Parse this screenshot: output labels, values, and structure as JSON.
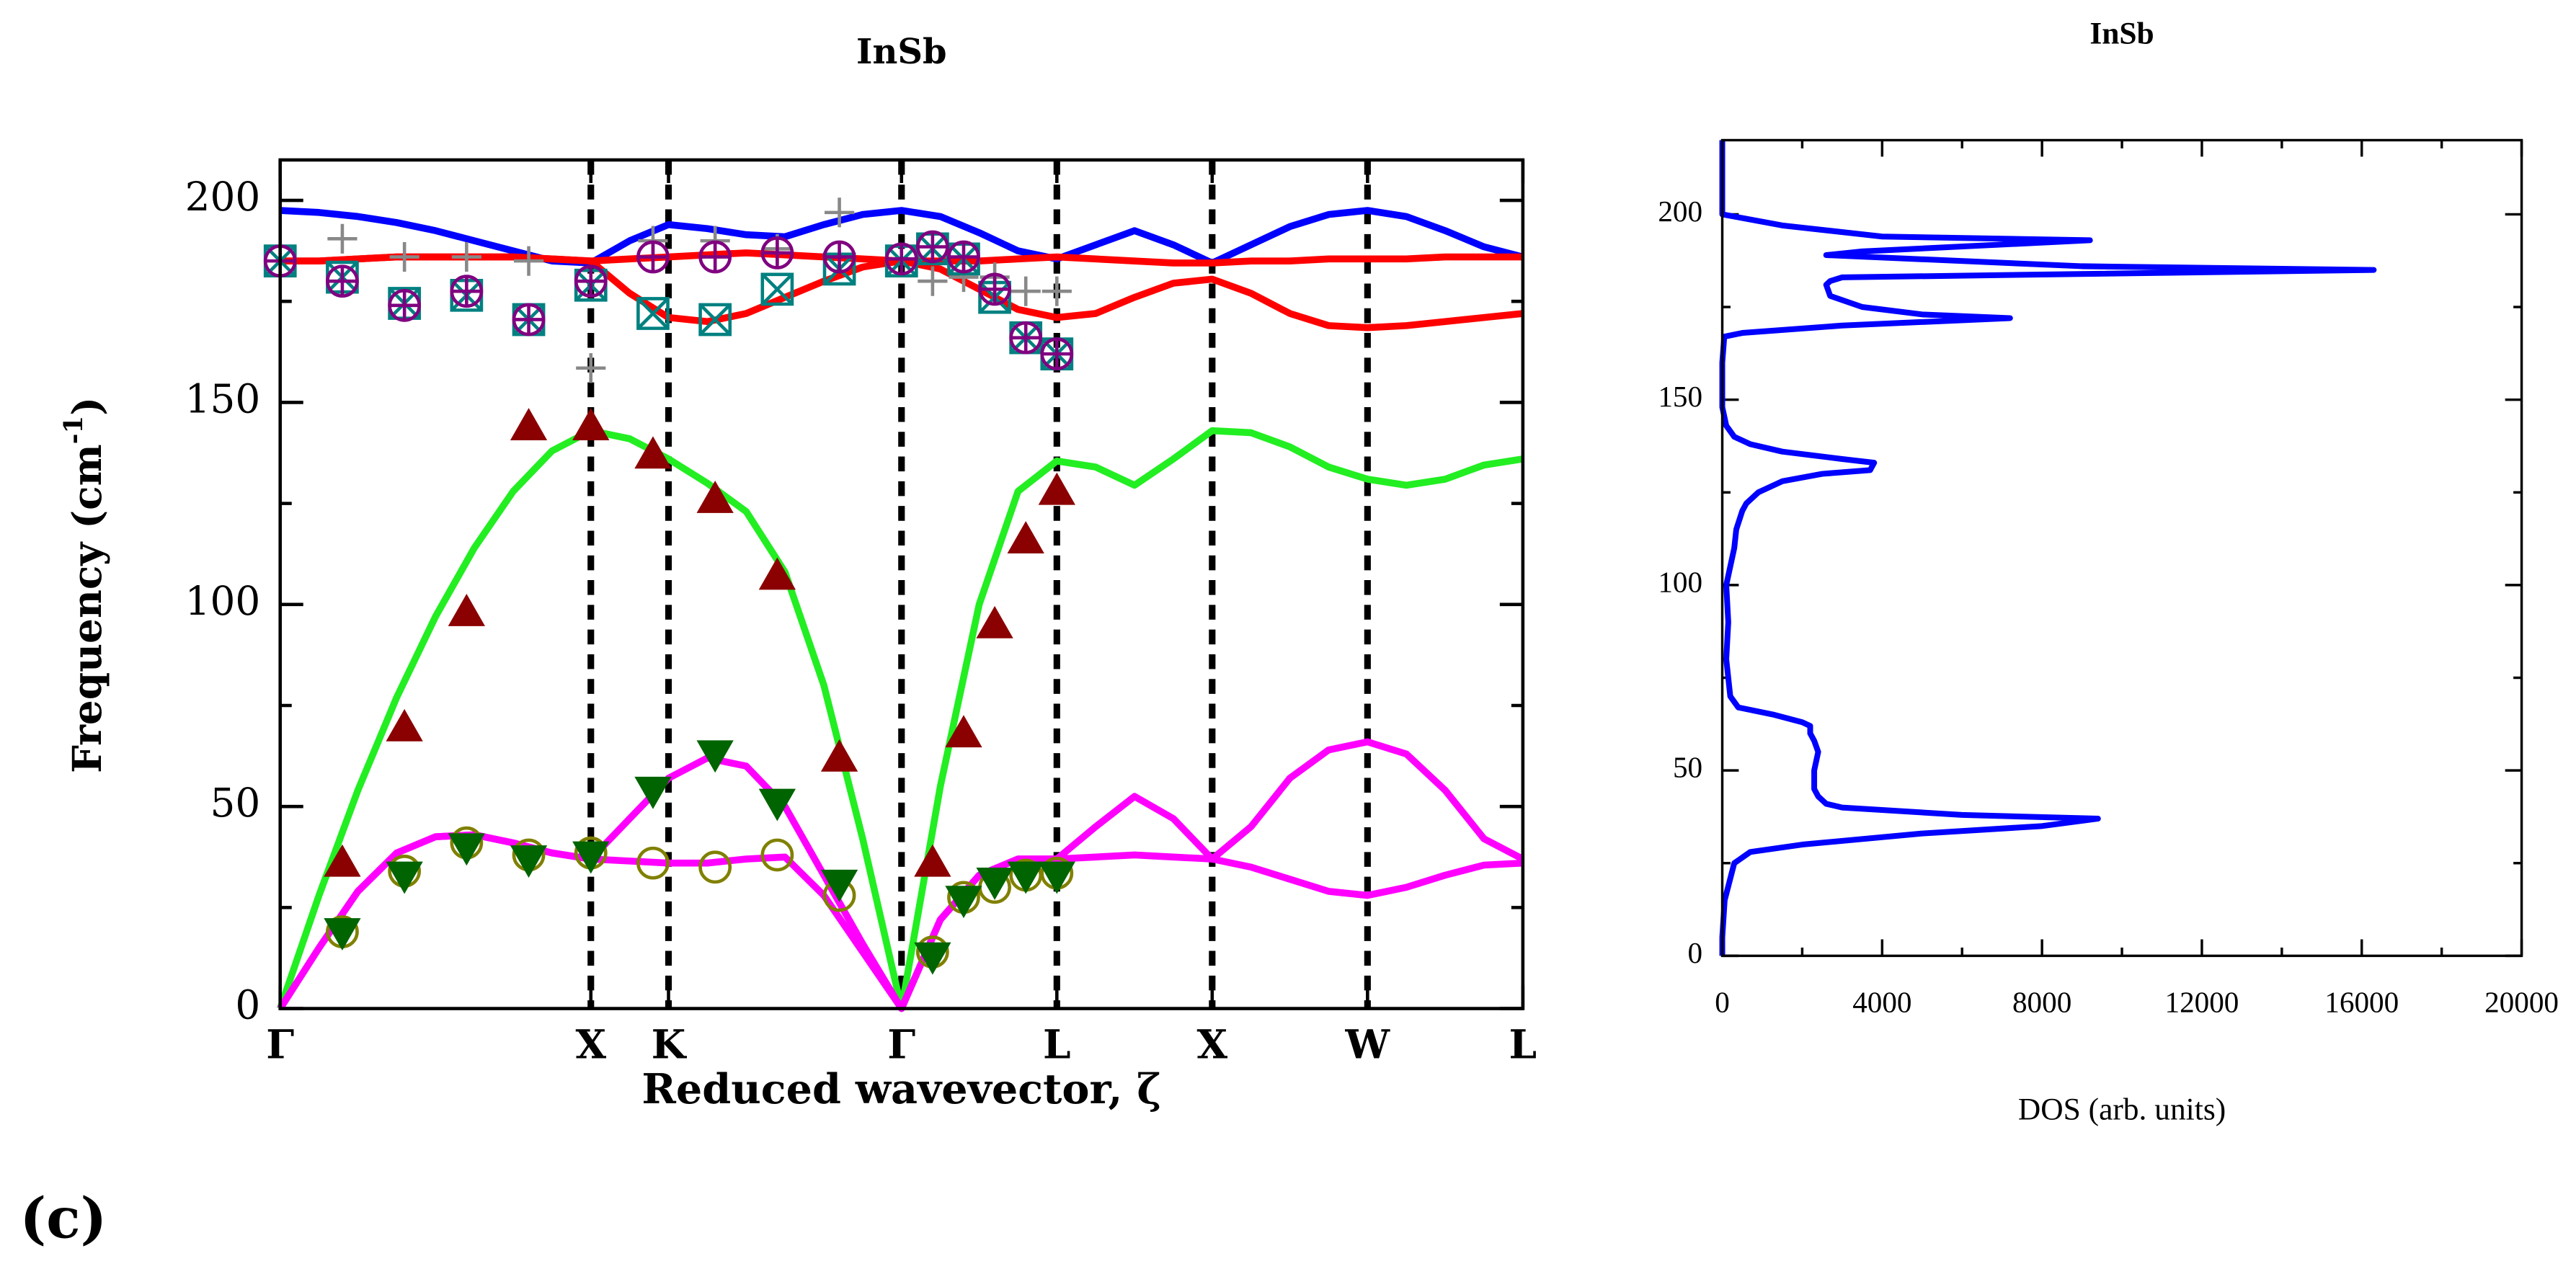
{
  "panel_label": "(c)",
  "chart_data": [
    {
      "type": "line",
      "title": "InSb",
      "xlabel": "Reduced wavevector, ζ",
      "ylabel": {
        "text": "Frequency (cm",
        "sup": "-1",
        "close": ")"
      },
      "xlim": [
        0,
        4
      ],
      "ylim": [
        0,
        210
      ],
      "xticks": [
        {
          "value": 0,
          "label": "Γ"
        },
        {
          "value": 1,
          "label": "X"
        },
        {
          "value": 1.25,
          "label": "K"
        },
        {
          "value": 2,
          "label": "Γ"
        },
        {
          "value": 2.5,
          "label": "L"
        },
        {
          "value": 3,
          "label": "X"
        },
        {
          "value": 3.5,
          "label": "W"
        },
        {
          "value": 4,
          "label": "L"
        }
      ],
      "yticks": [
        0,
        50,
        100,
        150,
        200
      ],
      "yminorticks": [
        25,
        75,
        125,
        175
      ],
      "symmetry_lines": true,
      "x": [
        0,
        0.125,
        0.25,
        0.375,
        0.5,
        0.625,
        0.75,
        0.875,
        1,
        1.125,
        1.25,
        1.375,
        1.5,
        1.625,
        1.75,
        1.875,
        2,
        2.125,
        2.25,
        2.375,
        2.5,
        2.625,
        2.75,
        2.875,
        3,
        3.125,
        3.25,
        3.375,
        3.5,
        3.625,
        3.75,
        3.875,
        4
      ],
      "series": [
        {
          "color": "#0000ff",
          "values": [
            197.5,
            197,
            196,
            194.5,
            192.5,
            190,
            187.5,
            185,
            184.5,
            190,
            194,
            193,
            191.5,
            191,
            194,
            196.5,
            197.5,
            196,
            192,
            187.5,
            185.5,
            189,
            192.5,
            189,
            184.5,
            189,
            193.5,
            196.5,
            197.5,
            196,
            192.5,
            188.5,
            186
          ]
        },
        {
          "color": "#ff0000",
          "values": [
            185,
            185,
            185.5,
            186,
            186,
            186,
            186,
            185.5,
            185,
            185.5,
            186,
            186.5,
            187,
            186.5,
            186,
            185.5,
            185,
            185,
            185,
            185.5,
            186,
            185.5,
            185,
            184.5,
            184.5,
            185,
            185,
            185.5,
            185.5,
            185.5,
            186,
            186,
            186
          ]
        },
        {
          "color": "#ff0000",
          "values": [
            185,
            185,
            185.5,
            186,
            186,
            186,
            186,
            185.5,
            185,
            177,
            171,
            170,
            172,
            176,
            180,
            183.5,
            185,
            183,
            178,
            173,
            171,
            172,
            176,
            179.5,
            180.5,
            177,
            172,
            169,
            168.5,
            169,
            170,
            171,
            172
          ]
        },
        {
          "color": "#22ee22",
          "values": [
            0,
            28,
            54,
            77,
            97,
            114,
            128,
            138,
            143,
            141,
            136,
            130,
            123,
            108,
            80,
            42,
            0,
            55,
            100,
            128,
            135.5,
            134,
            129.5,
            136,
            143,
            142.5,
            139,
            134,
            131,
            129.5,
            131,
            134.5,
            136
          ]
        },
        {
          "color": "#ff00ff",
          "values": [
            0,
            15,
            29,
            38.5,
            42.5,
            43,
            41,
            38.5,
            37,
            47,
            57,
            62,
            60,
            50,
            33,
            16,
            0,
            22,
            33,
            37,
            37,
            45,
            52.5,
            47,
            37,
            45,
            57,
            64,
            66,
            63,
            54,
            42,
            37
          ]
        },
        {
          "color": "#ff00ff",
          "values": [
            0,
            15,
            29,
            38.5,
            42.5,
            43,
            41,
            38.5,
            37,
            36.5,
            36,
            36,
            37,
            37.5,
            28,
            14,
            0,
            22,
            33,
            37,
            37,
            37.5,
            38,
            37.5,
            37,
            35,
            32,
            29,
            28,
            30,
            33,
            35.5,
            36
          ]
        },
        {
          "marker": "plus",
          "color": "#888888",
          "x": [
            0.2,
            0.4,
            0.6,
            0.8,
            1.0,
            1.2,
            1.4,
            1.6,
            1.8,
            2.1,
            2.2,
            2.3,
            2.4,
            2.5
          ],
          "values": [
            190.5,
            186,
            186,
            185,
            158.5,
            190,
            190,
            188,
            197,
            180,
            181,
            181,
            177.5,
            177.5
          ]
        },
        {
          "marker": "square-x",
          "color": "#008080",
          "x": [
            0,
            0.2,
            0.4,
            0.6,
            0.8,
            1.0,
            1.2,
            1.4,
            1.6,
            1.8,
            2.0,
            2.1,
            2.2,
            2.3,
            2.4,
            2.5
          ],
          "values": [
            185,
            181,
            174.5,
            176.5,
            170.5,
            179,
            172,
            170.5,
            178,
            183,
            185,
            188,
            185.5,
            176,
            166,
            162
          ]
        },
        {
          "marker": "circle-plus",
          "color": "#800080",
          "x": [
            0,
            0.2,
            0.4,
            0.6,
            0.8,
            1.0,
            1.2,
            1.4,
            1.6,
            1.8,
            2.0,
            2.1,
            2.2,
            2.3,
            2.4,
            2.5
          ],
          "values": [
            185,
            180,
            174,
            177.5,
            170.5,
            180,
            186,
            186,
            187,
            186,
            185.5,
            188.5,
            186,
            178,
            166,
            162
          ]
        },
        {
          "marker": "circle",
          "color": "#808000",
          "x": [
            0.2,
            0.4,
            0.6,
            0.8,
            1.0,
            1.2,
            1.4,
            1.6,
            1.8,
            2.1,
            2.2,
            2.3,
            2.4,
            2.5
          ],
          "values": [
            19,
            34,
            41,
            38,
            38.5,
            36,
            35,
            38,
            28,
            14,
            27.5,
            30,
            33,
            33.5
          ]
        },
        {
          "marker": "triangle-down",
          "color": "#006400",
          "x": [
            0.2,
            0.4,
            0.6,
            0.8,
            1.0,
            1.2,
            1.4,
            1.6,
            1.8,
            2.1,
            2.2,
            2.3,
            2.4,
            2.5
          ],
          "values": [
            19,
            33,
            40,
            37,
            38,
            54,
            63,
            51,
            31,
            13,
            27,
            31.5,
            33,
            33
          ]
        },
        {
          "marker": "triangle-up",
          "color": "#8b0000",
          "x": [
            0.2,
            0.4,
            0.6,
            0.8,
            1.0,
            1.2,
            1.4,
            1.6,
            1.8,
            2.1,
            2.2,
            2.3,
            2.4,
            2.5
          ],
          "values": [
            36,
            69.5,
            98,
            144,
            144,
            137,
            126,
            107,
            62,
            36,
            68,
            95,
            116,
            128
          ]
        }
      ]
    },
    {
      "type": "line",
      "title": "InSb",
      "xlabel": "DOS (arb. units)",
      "xlim": [
        0,
        20000
      ],
      "ylim": [
        0,
        220
      ],
      "xticks": [
        0,
        4000,
        8000,
        12000,
        16000,
        20000
      ],
      "xminorticks": [
        2000,
        6000,
        10000,
        14000,
        18000
      ],
      "yticks": [
        0,
        50,
        100,
        150,
        200
      ],
      "yminorticks": [
        25,
        75,
        125,
        175
      ],
      "series": [
        {
          "color": "#0000ff",
          "x": [
            0,
            0,
            60,
            300,
            700,
            2000,
            5000,
            8000,
            9400,
            6000,
            3000,
            2600,
            2400,
            2300,
            2300,
            2400,
            2300,
            2200,
            2200,
            2000,
            1300,
            400,
            200,
            100,
            150,
            100,
            300,
            350,
            500,
            600,
            900,
            1500,
            2500,
            3700,
            3800,
            3000,
            1500,
            700,
            300,
            100,
            0,
            0,
            50,
            500,
            3000,
            7200,
            5000,
            3500,
            2700,
            2600,
            2700,
            3000,
            16300,
            9000,
            2600,
            3500,
            9200,
            4000,
            1500,
            500,
            0,
            0,
            0
          ],
          "y": [
            0,
            5,
            15,
            25,
            28,
            30,
            33,
            35,
            37,
            38,
            40,
            41,
            43,
            45,
            50,
            55,
            58,
            60,
            62,
            63,
            65,
            67,
            70,
            80,
            90,
            100,
            110,
            115,
            120,
            122,
            125,
            128,
            130,
            131,
            133,
            134,
            136,
            138,
            140,
            143,
            148,
            160,
            167,
            168,
            170,
            172,
            173,
            175,
            178,
            181,
            182,
            183,
            185,
            186,
            189,
            190,
            193,
            194,
            197,
            199,
            200,
            210,
            220
          ]
        }
      ]
    }
  ]
}
